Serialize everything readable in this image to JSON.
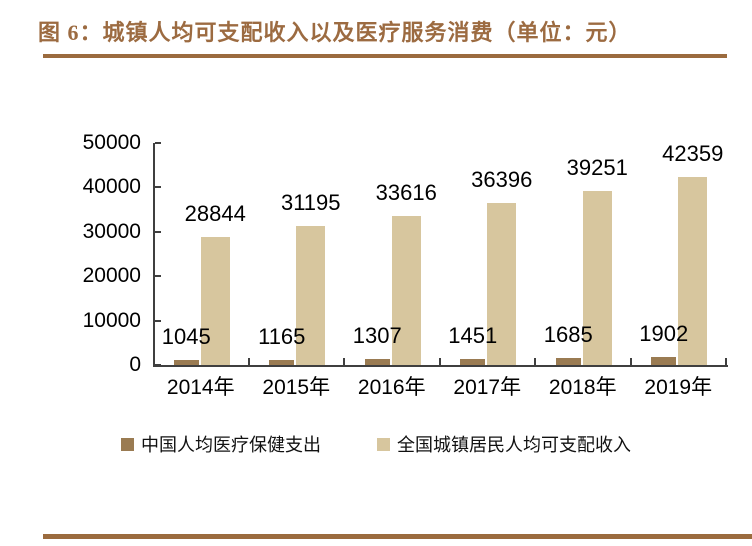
{
  "figure": {
    "title": "图 6：城镇人均可支配收入以及医疗服务消费（单位：元）"
  },
  "chart_data": {
    "type": "bar",
    "title": "城镇人均可支配收入以及医疗服务消费",
    "unit": "元",
    "categories": [
      "2014年",
      "2015年",
      "2016年",
      "2017年",
      "2018年",
      "2019年"
    ],
    "series": [
      {
        "key": "medical-expenditure",
        "name": "中国人均医疗保健支出",
        "color": "#9A7B52",
        "values": [
          1045,
          1165,
          1307,
          1451,
          1685,
          1902
        ]
      },
      {
        "key": "disposable-income",
        "name": "全国城镇居民人均可支配收入",
        "color": "#D7C69E",
        "values": [
          28844,
          31195,
          33616,
          36396,
          39251,
          42359
        ]
      }
    ],
    "xlabel": "",
    "ylabel": "",
    "ylim": [
      0,
      50000
    ],
    "y_ticks": [
      0,
      10000,
      20000,
      30000,
      40000,
      50000
    ],
    "grid": false,
    "data_labels": true,
    "legend_position": "bottom"
  },
  "colors": {
    "background": "#FFFFFF",
    "title": "#9C6B41",
    "rule": "#9B6B3E",
    "axis": "#3F3F3F",
    "label_text": "#000000"
  }
}
